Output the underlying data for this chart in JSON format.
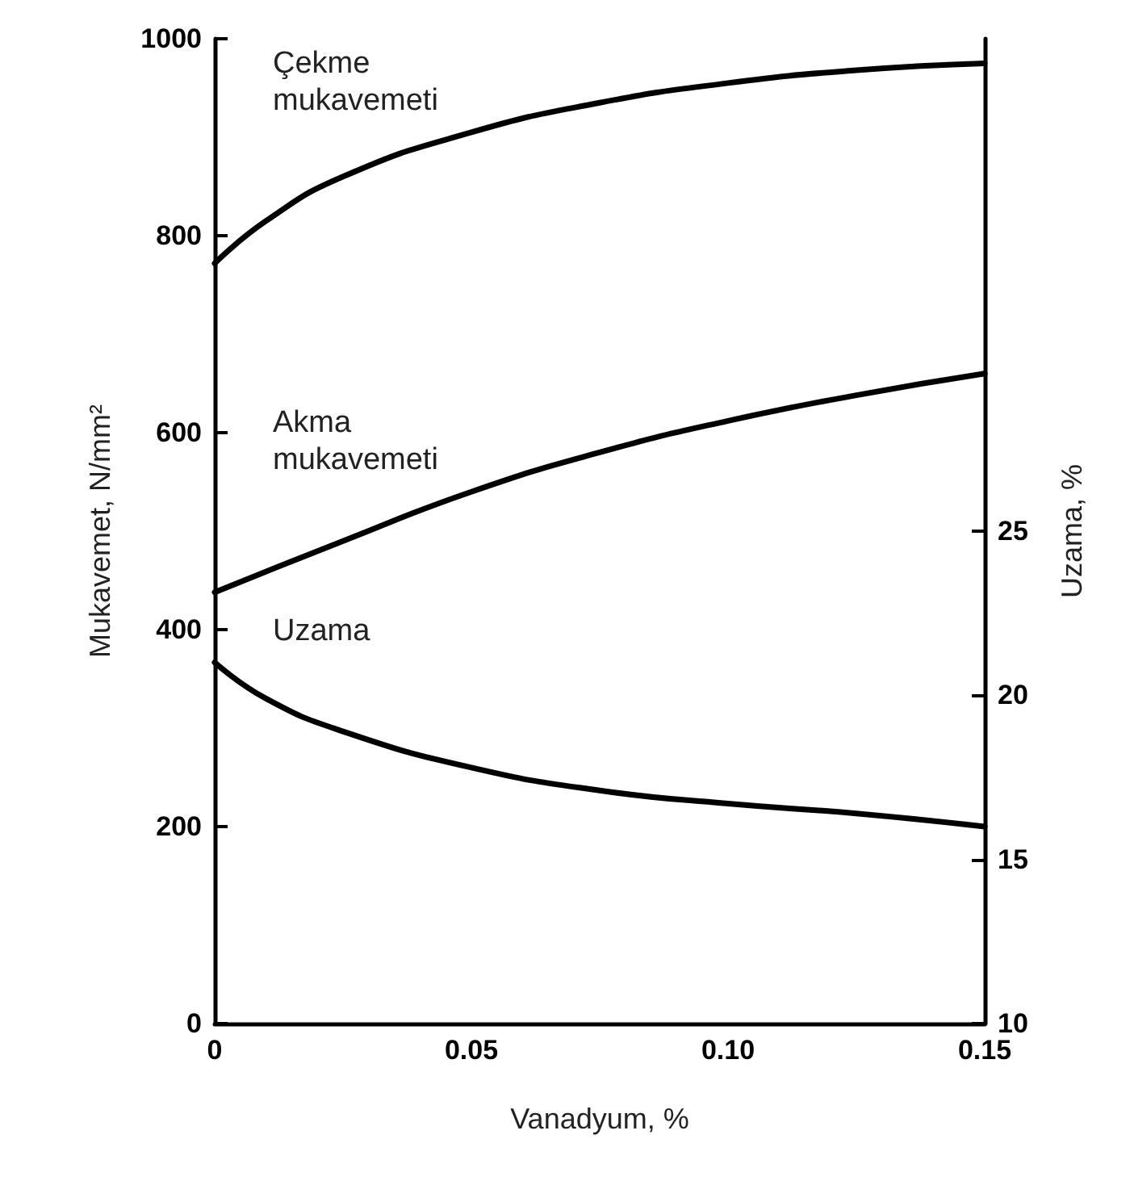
{
  "chart_data": {
    "type": "line",
    "xlabel": "Vanadyum, %",
    "ylabel": "Mukavemet, N/mm²",
    "y2label": "Uzama, %",
    "xlim": [
      0,
      0.15
    ],
    "xticks": [
      0,
      0.05,
      {
        "value": 0.1,
        "label": "0.10"
      },
      0.15
    ],
    "ylim": [
      0,
      1000
    ],
    "yticks": [
      0,
      200,
      400,
      600,
      800,
      1000
    ],
    "y2lim": [
      10,
      40
    ],
    "y2ticks": [
      10,
      15,
      20,
      25
    ],
    "grid": false,
    "legend": false,
    "marker": "none",
    "line_style": "solid",
    "series": [
      {
        "name": "Çekme\nmukavemeti",
        "color": "#000000",
        "x": [
          0,
          0.01,
          0.025,
          0.05,
          0.075,
          0.1,
          0.125,
          0.15
        ],
        "values": [
          772,
          815,
          860,
          905,
          935,
          955,
          968,
          975
        ]
      },
      {
        "name": "Akma\nmukavemeti",
        "color": "#000000",
        "x": [
          0,
          0.025,
          0.05,
          0.075,
          0.1,
          0.125,
          0.15
        ],
        "values": [
          438,
          490,
          540,
          580,
          612,
          638,
          660
        ]
      },
      {
        "name": "Uzama",
        "color": "#000000",
        "axis": "y2",
        "x": [
          0,
          0.01,
          0.025,
          0.05,
          0.075,
          0.1,
          0.125,
          0.15
        ],
        "values": [
          21.0,
          19.9,
          18.9,
          17.8,
          17.1,
          16.7,
          16.4,
          16.0
        ]
      }
    ]
  }
}
